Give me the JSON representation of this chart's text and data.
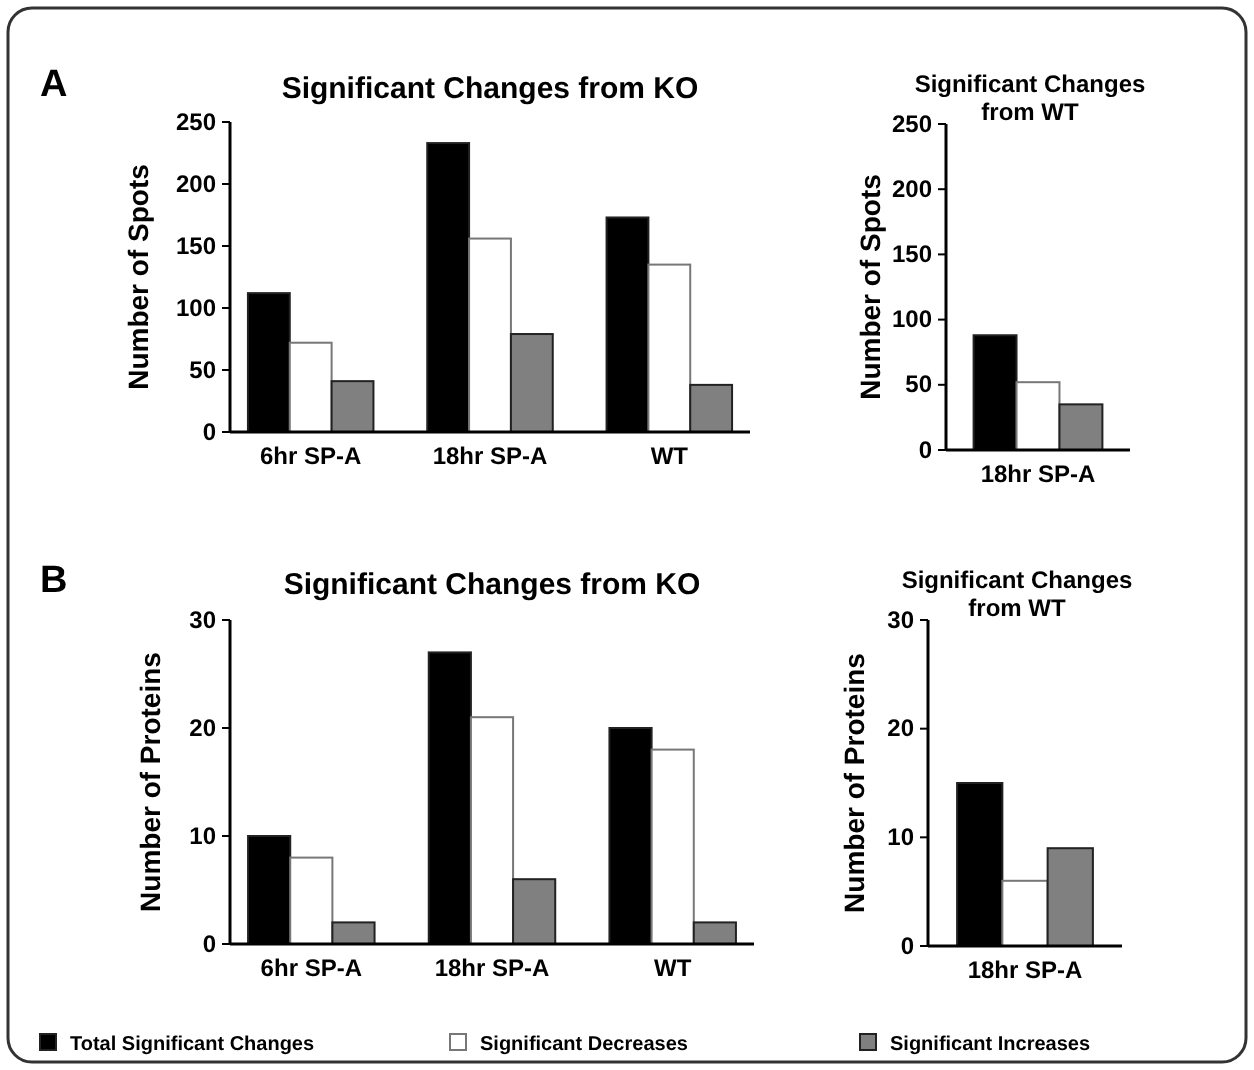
{
  "chart_data": [
    {
      "type": "bar",
      "title": "Significant Changes from KO",
      "ylabel": "Number of Spots",
      "annotations": [
        "A"
      ],
      "categories": [
        "6hr SP-A",
        "18hr SP-A",
        "WT"
      ],
      "ylim": [
        0,
        250
      ],
      "yticks": [
        0,
        50,
        100,
        150,
        200,
        250
      ],
      "grid": false,
      "legend": false,
      "series": [
        {
          "color": "#000000",
          "values": [
            112,
            233,
            173
          ]
        },
        {
          "color": "#ffffff",
          "values": [
            72,
            156,
            135
          ]
        },
        {
          "color": "#808080",
          "values": [
            41,
            79,
            38
          ]
        }
      ]
    },
    {
      "type": "bar",
      "title": "Significant Changes from WT",
      "ylabel": "Number of Spots",
      "categories": [
        "18hr SP-A"
      ],
      "ylim": [
        0,
        250
      ],
      "yticks": [
        0,
        50,
        100,
        150,
        200,
        250
      ],
      "grid": false,
      "legend": false,
      "series": [
        {
          "color": "#000000",
          "values": [
            88
          ]
        },
        {
          "color": "#ffffff",
          "values": [
            52
          ]
        },
        {
          "color": "#808080",
          "values": [
            35
          ]
        }
      ]
    },
    {
      "type": "bar",
      "title": "Significant Changes from KO",
      "ylabel": "Number of Proteins",
      "annotations": [
        "B"
      ],
      "categories": [
        "6hr SP-A",
        "18hr SP-A",
        "WT"
      ],
      "ylim": [
        0,
        30
      ],
      "yticks": [
        0,
        10,
        20,
        30
      ],
      "grid": false,
      "legend": false,
      "series": [
        {
          "color": "#000000",
          "values": [
            10,
            27,
            20
          ]
        },
        {
          "color": "#ffffff",
          "values": [
            8,
            21,
            18
          ]
        },
        {
          "color": "#808080",
          "values": [
            2,
            6,
            2
          ]
        }
      ]
    },
    {
      "type": "bar",
      "title": "Significant Changes from WT",
      "ylabel": "Number of Proteins",
      "categories": [
        "18hr SP-A"
      ],
      "ylim": [
        0,
        30
      ],
      "yticks": [
        0,
        10,
        20,
        30
      ],
      "grid": false,
      "legend": "bottom",
      "series": [
        {
          "name": "Total Significant Changes",
          "color": "#000000",
          "values": [
            15
          ]
        },
        {
          "name": "Significant Decreases",
          "color": "#ffffff",
          "values": [
            6
          ]
        },
        {
          "name": "Significant Increases",
          "color": "#808080",
          "values": [
            9
          ]
        }
      ]
    }
  ]
}
